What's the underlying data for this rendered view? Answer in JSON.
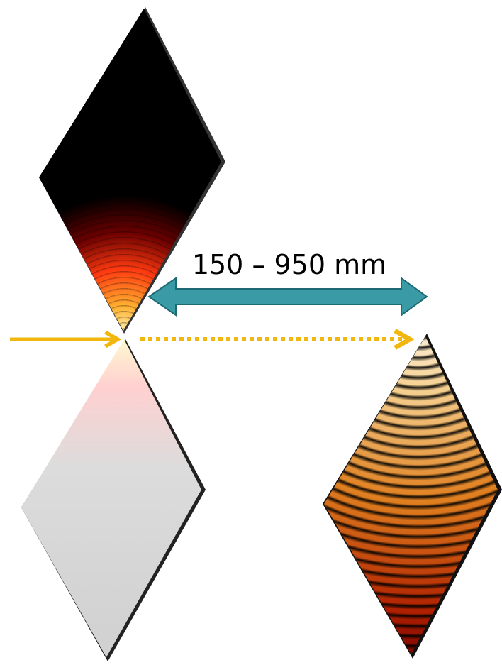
{
  "distance_label": "150 – 950 mm"
}
